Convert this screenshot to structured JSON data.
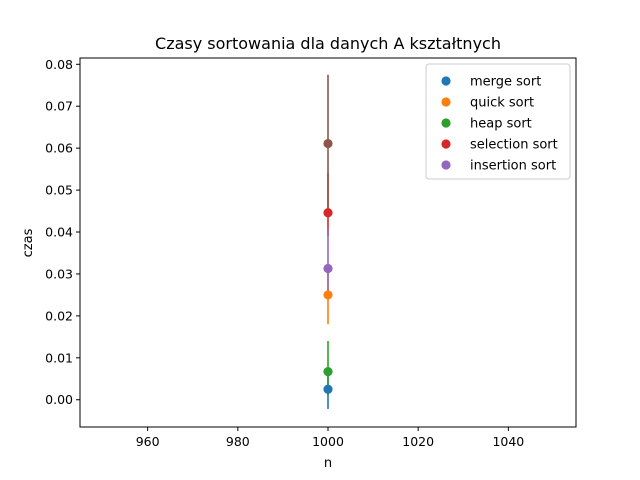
{
  "chart_data": {
    "type": "scatter",
    "title": "Czasy sortowania dla danych A kształtnych",
    "xlabel": "n",
    "ylabel": "czas",
    "xlim": [
      945,
      1055
    ],
    "ylim": [
      -0.0065,
      0.0815
    ],
    "xticks": [
      "960",
      "980",
      "1000",
      "1020",
      "1040"
    ],
    "yticks": [
      "0.00",
      "0.01",
      "0.02",
      "0.03",
      "0.04",
      "0.05",
      "0.06",
      "0.07",
      "0.08"
    ],
    "grid": false,
    "legend_position": "top-right",
    "series": [
      {
        "name": "merge sort",
        "color": "#1f77b4",
        "x": 1000,
        "y": 0.0025,
        "err_low": -0.0022,
        "err_high": 0.006
      },
      {
        "name": "quick sort",
        "color": "#ff7f0e",
        "x": 1000,
        "y": 0.025,
        "err_low": 0.018,
        "err_high": 0.031
      },
      {
        "name": "heap sort",
        "color": "#2ca02c",
        "x": 1000,
        "y": 0.0067,
        "err_low": 0.001,
        "err_high": 0.014
      },
      {
        "name": "selection sort",
        "color": "#d62728",
        "x": 1000,
        "y": 0.0446,
        "err_low": 0.039,
        "err_high": 0.054
      },
      {
        "name": "insertion sort",
        "color": "#9467bd",
        "x": 1000,
        "y": 0.0313,
        "err_low": 0.026,
        "err_high": 0.041
      },
      {
        "name": "",
        "color": "#8c564b",
        "x": 1000,
        "y": 0.0611,
        "err_low": 0.045,
        "err_high": 0.0775
      }
    ]
  }
}
